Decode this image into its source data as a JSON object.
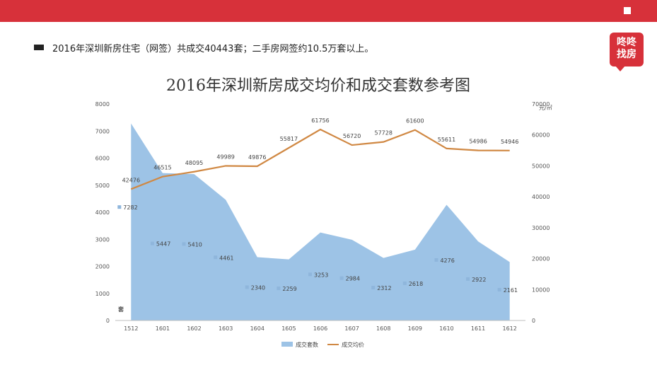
{
  "header": {
    "bullet_text": "2016年深圳新房住宅（网签）共成交40443套；二手房网签约10.5万套以上。"
  },
  "logo": {
    "line1": "咚咚",
    "line2": "找房"
  },
  "colors": {
    "brand": "#d7313a",
    "area": "#9dc3e6",
    "line": "#d08843",
    "marker": "#8fb6dc"
  },
  "chart_data": {
    "type": "area+line",
    "title": "2016年深圳新房成交均价和成交套数参考图",
    "categories": [
      "1512",
      "1601",
      "1602",
      "1603",
      "1604",
      "1605",
      "1606",
      "1607",
      "1608",
      "1609",
      "1610",
      "1611",
      "1612"
    ],
    "series": [
      {
        "name": "成交套数",
        "type": "area",
        "axis": "left",
        "values": [
          7282,
          5447,
          5410,
          4461,
          2340,
          2259,
          3253,
          2984,
          2312,
          2618,
          4276,
          2922,
          2161
        ]
      },
      {
        "name": "成交均价",
        "type": "line",
        "axis": "right",
        "values": [
          42476,
          46515,
          48095,
          49989,
          49876,
          55817,
          61756,
          56720,
          57728,
          61600,
          55611,
          54986,
          54946
        ]
      }
    ],
    "y_left": {
      "label": "套",
      "min": 0,
      "max": 8000,
      "ticks": [
        "0",
        "1000",
        "2000",
        "3000",
        "4000",
        "5000",
        "6000",
        "7000",
        "8000"
      ]
    },
    "y_right": {
      "label": "元/㎡",
      "min": 0,
      "max": 70000,
      "ticks": [
        "0",
        "10000",
        "20000",
        "30000",
        "40000",
        "50000",
        "60000",
        "70000"
      ]
    },
    "legend": {
      "position": "bottom",
      "entries": [
        "成交套数",
        "成交均价"
      ]
    },
    "grid": false
  }
}
